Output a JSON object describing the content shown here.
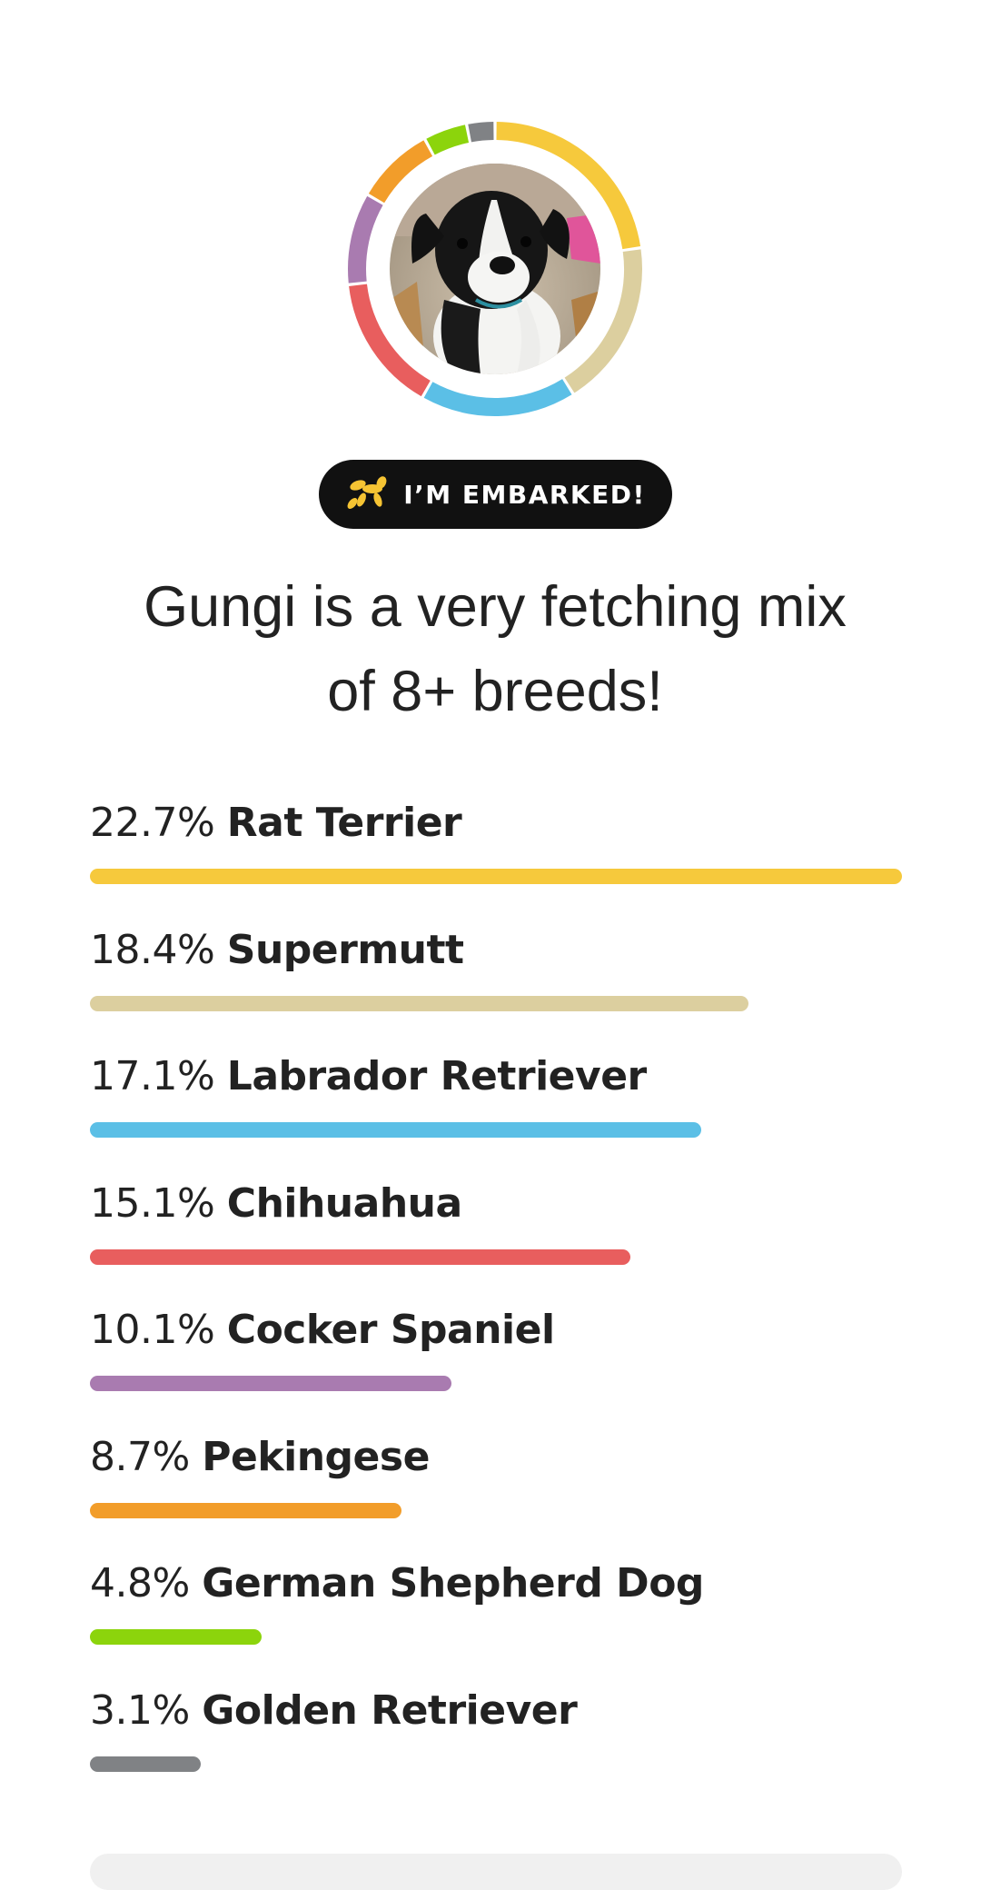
{
  "profile": {
    "photo_alt": "Gungi the puppy",
    "ring_gap_color": "#ffffff"
  },
  "badge": {
    "label": "I’M EMBARKED!",
    "icon": "balloon-dog-icon",
    "icon_color": "#f6c433",
    "background": "#111111"
  },
  "headline": {
    "line1": "Gungi is a very fetching mix",
    "line2": "of 8+ breeds!"
  },
  "chart_data": {
    "type": "bar",
    "orientation": "horizontal",
    "categories": [
      "Rat Terrier",
      "Supermutt",
      "Labrador Retriever",
      "Chihuahua",
      "Cocker Spaniel",
      "Pekingese",
      "German Shepherd Dog",
      "Golden Retriever"
    ],
    "values": [
      22.7,
      18.4,
      17.1,
      15.1,
      10.1,
      8.7,
      4.8,
      3.1
    ],
    "labels": [
      "22.7%",
      "18.4%",
      "17.1%",
      "15.1%",
      "10.1%",
      "8.7%",
      "4.8%",
      "3.1%"
    ],
    "colors": [
      "#f6c93c",
      "#dccf9f",
      "#5bbfe6",
      "#e85e5e",
      "#a97bb0",
      "#f29d2a",
      "#8cd40c",
      "#808285"
    ],
    "max_value": 22.7
  }
}
